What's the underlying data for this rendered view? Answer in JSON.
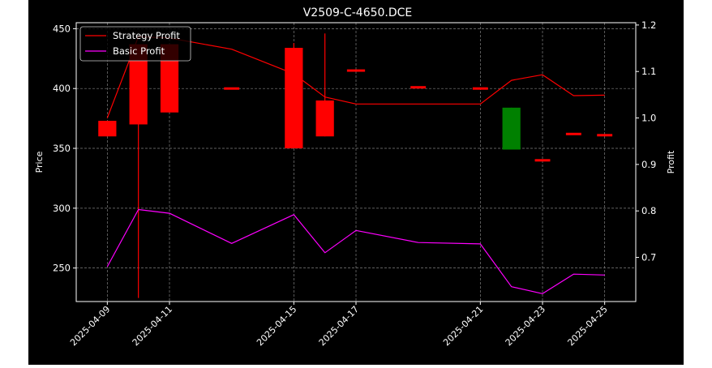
{
  "chart_data": {
    "type": "candlestick+line",
    "title": "V2509-C-4650.DCE",
    "ylabel_left": "Price",
    "ylabel_right": "Profit",
    "ylim_left": [
      222,
      455
    ],
    "ylim_right": [
      0.605,
      1.205
    ],
    "xlim": [
      "2025-04-08",
      "2025-04-26"
    ],
    "grid": true,
    "legend_position": "top-left",
    "x_tick_labels": [
      "2025-04-09",
      "2025-04-11",
      "2025-04-15",
      "2025-04-17",
      "2025-04-21",
      "2025-04-23",
      "2025-04-25"
    ],
    "y_tick_labels_left": [
      "250",
      "300",
      "350",
      "400",
      "450"
    ],
    "y_tick_labels_right": [
      "0.7",
      "0.8",
      "0.9",
      "1.0",
      "1.1",
      "1.2"
    ],
    "candles": [
      {
        "date": "2025-04-09",
        "open": 360,
        "close": 373,
        "high": 373,
        "low": 360,
        "color": "#ff0000"
      },
      {
        "date": "2025-04-10",
        "open": 370,
        "close": 437,
        "high": 437,
        "low": 225,
        "color": "#ff0000"
      },
      {
        "date": "2025-04-11",
        "open": 380,
        "close": 437,
        "high": 437,
        "low": 380,
        "color": "#ff0000"
      },
      {
        "date": "2025-04-13",
        "open": 400,
        "close": 400,
        "high": 400,
        "low": 400,
        "color": "#ff0000"
      },
      {
        "date": "2025-04-15",
        "open": 350,
        "close": 434,
        "high": 438,
        "low": 350,
        "color": "#ff0000"
      },
      {
        "date": "2025-04-16",
        "open": 360,
        "close": 390,
        "high": 446,
        "low": 360,
        "color": "#ff0000"
      },
      {
        "date": "2025-04-17",
        "open": 414,
        "close": 416,
        "high": 416,
        "low": 414,
        "color": "#ff0000"
      },
      {
        "date": "2025-04-19",
        "open": 401,
        "close": 401,
        "high": 401,
        "low": 401,
        "color": "#ff0000"
      },
      {
        "date": "2025-04-21",
        "open": 400,
        "close": 400,
        "high": 400,
        "low": 400,
        "color": "#ff0000"
      },
      {
        "date": "2025-04-22",
        "open": 384,
        "close": 349,
        "high": 384,
        "low": 349,
        "color": "#008000"
      },
      {
        "date": "2025-04-23",
        "open": 340,
        "close": 340,
        "high": 340,
        "low": 340,
        "color": "#ff0000"
      },
      {
        "date": "2025-04-24",
        "open": 362,
        "close": 362,
        "high": 362,
        "low": 362,
        "color": "#ff0000"
      },
      {
        "date": "2025-04-25",
        "open": 361,
        "close": 361,
        "high": 361,
        "low": 361,
        "color": "#ff0000"
      }
    ],
    "series": [
      {
        "name": "Strategy Profit",
        "color": "#ff0000",
        "axis": "right",
        "points": [
          [
            "2025-04-09",
            1.0
          ],
          [
            "2025-04-10",
            1.175
          ],
          [
            "2025-04-11",
            1.172
          ],
          [
            "2025-04-13",
            1.148
          ],
          [
            "2025-04-15",
            1.095
          ],
          [
            "2025-04-16",
            1.045
          ],
          [
            "2025-04-17",
            1.03
          ],
          [
            "2025-04-19",
            1.03
          ],
          [
            "2025-04-21",
            1.03
          ],
          [
            "2025-04-22",
            1.081
          ],
          [
            "2025-04-23",
            1.093
          ],
          [
            "2025-04-24",
            1.048
          ],
          [
            "2025-04-25",
            1.049
          ]
        ]
      },
      {
        "name": "Basic Profit",
        "color": "#ff00ff",
        "axis": "right",
        "points": [
          [
            "2025-04-09",
            0.68
          ],
          [
            "2025-04-10",
            0.803
          ],
          [
            "2025-04-11",
            0.795
          ],
          [
            "2025-04-13",
            0.73
          ],
          [
            "2025-04-15",
            0.792
          ],
          [
            "2025-04-16",
            0.71
          ],
          [
            "2025-04-17",
            0.758
          ],
          [
            "2025-04-19",
            0.732
          ],
          [
            "2025-04-21",
            0.729
          ],
          [
            "2025-04-22",
            0.637
          ],
          [
            "2025-04-23",
            0.622
          ],
          [
            "2025-04-24",
            0.664
          ],
          [
            "2025-04-25",
            0.662
          ]
        ]
      }
    ]
  }
}
